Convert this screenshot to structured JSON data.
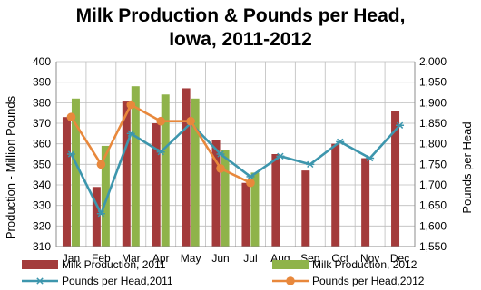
{
  "chart_data": {
    "type": "bar",
    "title": [
      "Milk Production & Pounds per Head,",
      "Iowa, 2011-2012"
    ],
    "ylabel": "Production - Million Pounds",
    "y2label": "Pounds per Head",
    "ylim": [
      310,
      400
    ],
    "y2lim": [
      1550,
      2000
    ],
    "yticks": [
      "310",
      "320",
      "330",
      "340",
      "350",
      "360",
      "370",
      "380",
      "390",
      "400"
    ],
    "y2ticks": [
      "1,550",
      "1,600",
      "1,650",
      "1,700",
      "1,750",
      "1,800",
      "1,850",
      "1,900",
      "1,950",
      "2,000"
    ],
    "grid": true,
    "legend_position": "bottom",
    "categories": [
      "Jan",
      "Feb",
      "Mar",
      "Apr",
      "May",
      "Jun",
      "Jul",
      "Aug",
      "Sep",
      "Oct",
      "Nov",
      "Dec"
    ],
    "bar_series": [
      {
        "name": "Milk Production, 2011",
        "color": "#a33b3b",
        "axis": "left",
        "values": [
          373,
          339,
          381,
          370,
          387,
          362,
          341,
          355,
          347,
          360,
          353,
          376
        ]
      },
      {
        "name": "Milk Production, 2012",
        "color": "#8fb34a",
        "axis": "left",
        "values": [
          382,
          359,
          388,
          384,
          382,
          357,
          346
        ]
      }
    ],
    "line_series": [
      {
        "name": "Pounds per Head,2011",
        "color": "#3d96ad",
        "marker": "star",
        "axis": "right",
        "values": [
          1775,
          1630,
          1825,
          1780,
          1850,
          1775,
          1720,
          1770,
          1750,
          1805,
          1765,
          1845
        ]
      },
      {
        "name": "Pounds per Head,2012",
        "color": "#e8883c",
        "marker": "circle",
        "axis": "right",
        "values": [
          1865,
          1750,
          1895,
          1855,
          1855,
          1740,
          1705
        ]
      }
    ]
  }
}
